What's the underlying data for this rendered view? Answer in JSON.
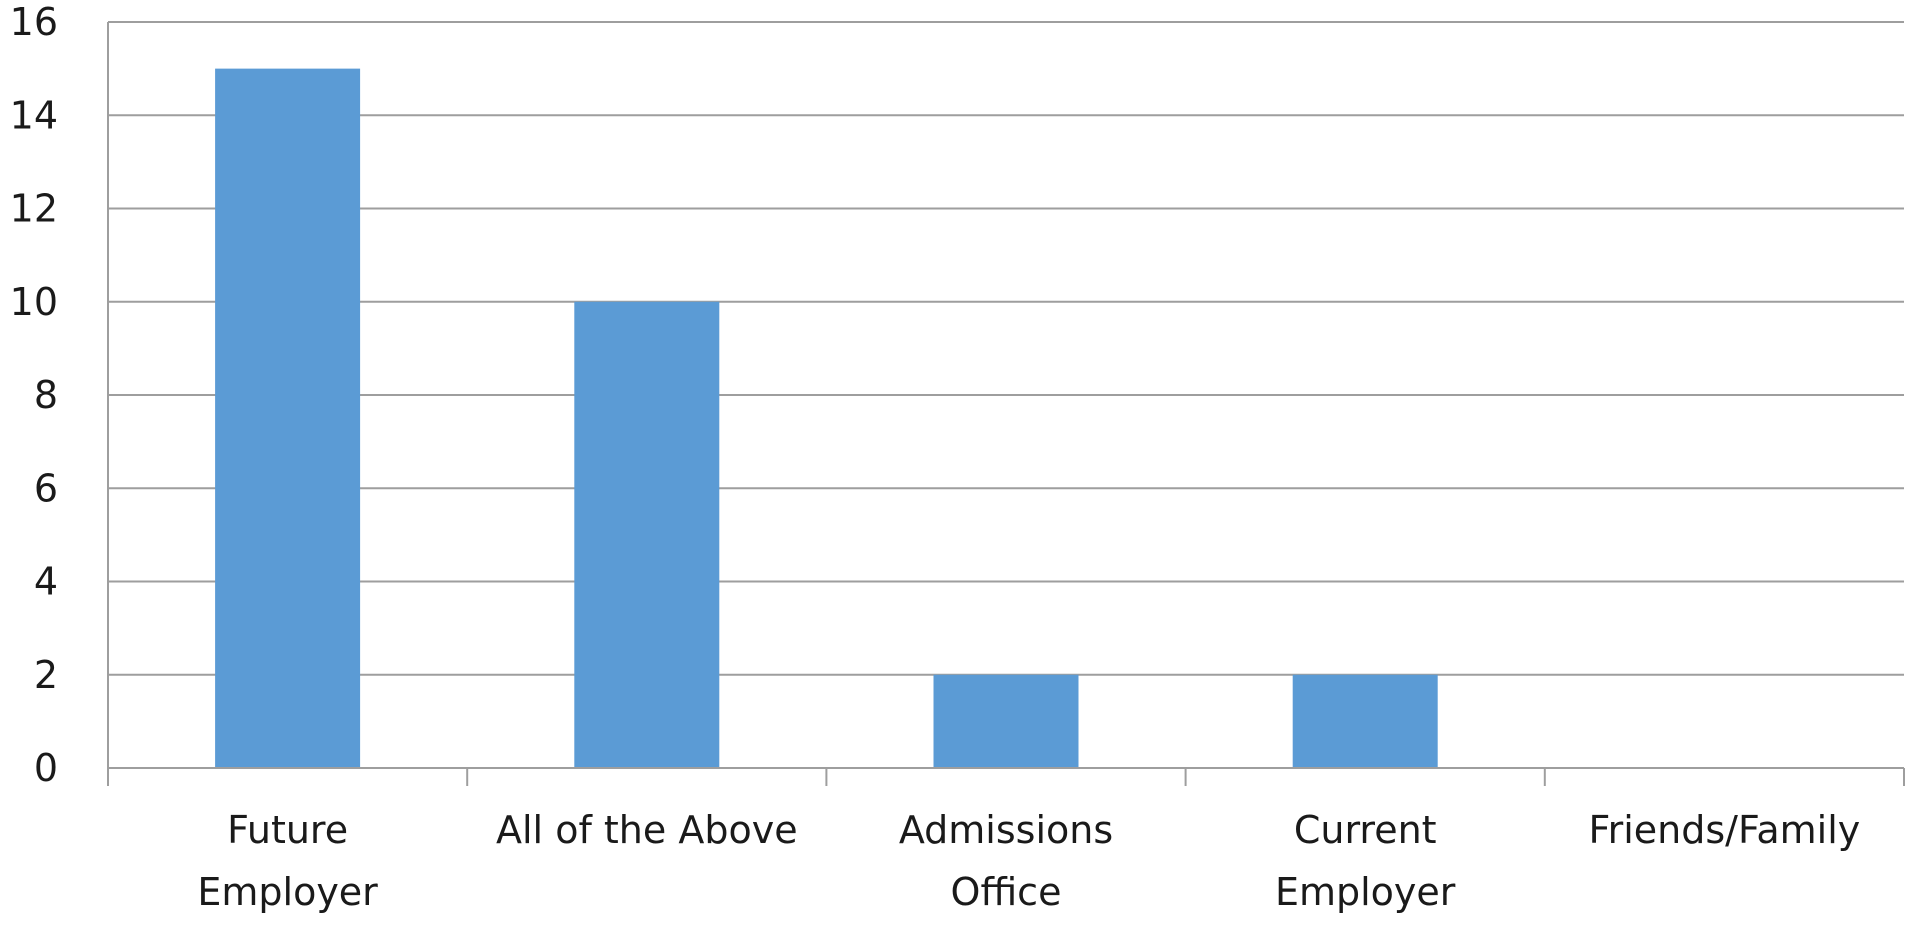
{
  "chart_data": {
    "type": "bar",
    "categories": [
      [
        "Future",
        "Employer"
      ],
      [
        "All of the Above"
      ],
      [
        "Admissions",
        "Office"
      ],
      [
        "Current",
        "Employer"
      ],
      [
        "Friends/Family"
      ]
    ],
    "series": [
      {
        "values": [
          15,
          10,
          2,
          2,
          0
        ]
      }
    ],
    "ylim": [
      0,
      16
    ],
    "yticks": [
      0,
      2,
      4,
      6,
      8,
      10,
      12,
      14,
      16
    ],
    "grid": true,
    "legend": "none",
    "colors": {
      "bar": "#5b9bd5",
      "grid": "#9e9e9e",
      "text": "#1a1a1a"
    }
  }
}
